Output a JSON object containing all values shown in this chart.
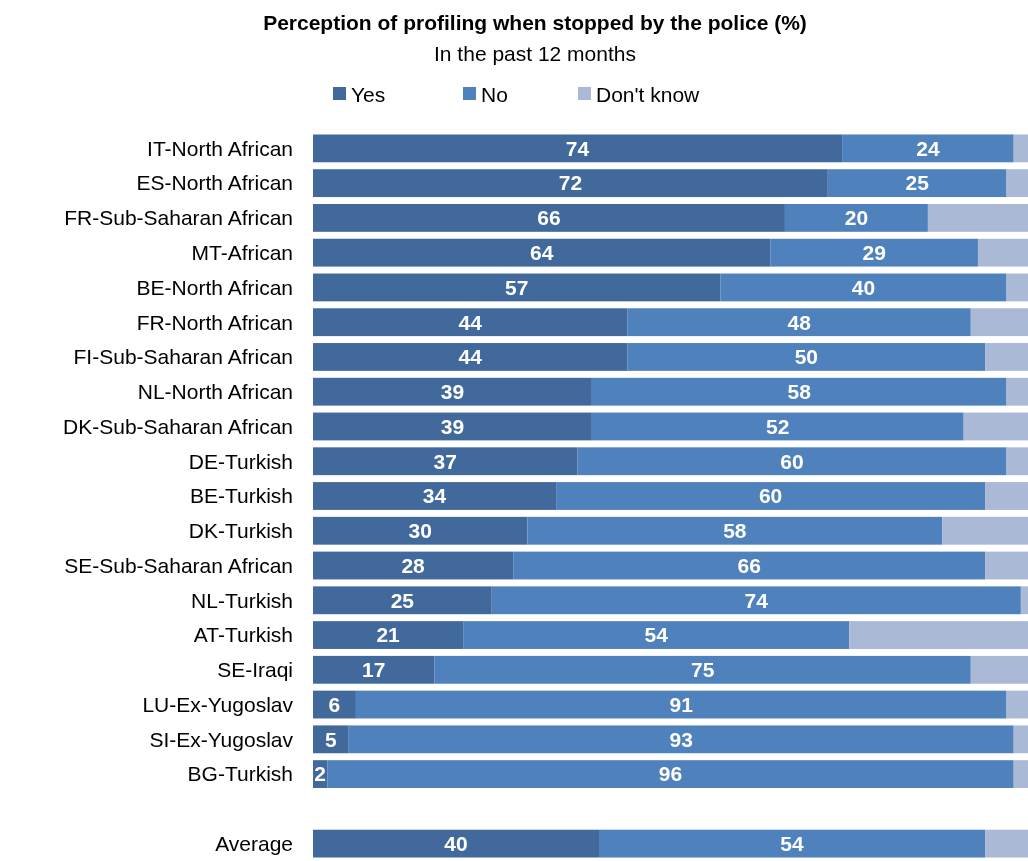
{
  "chart_data": {
    "type": "bar",
    "orientation": "horizontal",
    "stacked": true,
    "title": "Perception of profiling when stopped by the police (%)",
    "subtitle": "In the past 12 months",
    "categories": [
      "IT-North African",
      "ES-North African",
      "FR-Sub-Saharan African",
      "MT-African",
      "BE-North African",
      "FR-North African",
      "FI-Sub-Saharan African",
      "NL-North African",
      "DK-Sub-Saharan African",
      "DE-Turkish",
      "BE-Turkish",
      "DK-Turkish",
      "SE-Sub-Saharan African",
      "NL-Turkish",
      "AT-Turkish",
      "SE-Iraqi",
      "LU-Ex-Yugoslav",
      "SI-Ex-Yugoslav",
      "BG-Turkish",
      null,
      "Average"
    ],
    "xlim": [
      0,
      100
    ],
    "tick_labels": "y",
    "legend": "top",
    "grid": false,
    "series": [
      {
        "name": "Yes",
        "color": "#41699c",
        "values": [
          74,
          72,
          66,
          64,
          57,
          44,
          44,
          39,
          39,
          37,
          34,
          30,
          28,
          25,
          21,
          17,
          6,
          5,
          2,
          null,
          40
        ],
        "value_labels": [
          "74",
          "72",
          "66",
          "64",
          "57",
          "44",
          "44",
          "39",
          "39",
          "37",
          "34",
          "30",
          "28",
          "25",
          "21",
          "17",
          "6",
          "5",
          "2",
          null,
          "40"
        ]
      },
      {
        "name": "No",
        "color": "#4f81bd",
        "values": [
          24,
          25,
          20,
          29,
          40,
          48,
          50,
          58,
          52,
          60,
          60,
          58,
          66,
          74,
          54,
          75,
          91,
          93,
          96,
          null,
          54
        ],
        "value_labels": [
          "24",
          "25",
          "20",
          "29",
          "40",
          "48",
          "50",
          "58",
          "52",
          "60",
          "60",
          "58",
          "66",
          "74",
          "54",
          "75",
          "91",
          "93",
          "96",
          null,
          "54"
        ]
      },
      {
        "name": "Don't know",
        "color": "#a9b9d6",
        "values": [
          2,
          3,
          14,
          7,
          3,
          8,
          6,
          3,
          9,
          3,
          6,
          12,
          6,
          1,
          25,
          8,
          3,
          2,
          2,
          null,
          6
        ]
      }
    ]
  }
}
